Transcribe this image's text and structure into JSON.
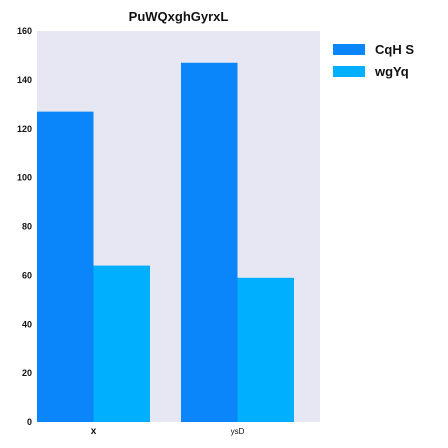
{
  "chart_data": {
    "type": "bar",
    "title": "PuWQxghGyrxL",
    "categories": [
      "x",
      "ysD"
    ],
    "series": [
      {
        "name": "CqH S",
        "values": [
          127,
          147
        ],
        "color": "#0a86fa"
      },
      {
        "name": "wgYq",
        "values": [
          64,
          59
        ],
        "color": "#00b0ff"
      }
    ],
    "xlabel": "",
    "ylabel": "",
    "ylim": [
      0,
      160
    ],
    "yticks": [
      0,
      20,
      40,
      60,
      80,
      100,
      120,
      140,
      160
    ],
    "grid": false,
    "legend_position": "top-right",
    "plot_background": "#e6e7f2"
  }
}
